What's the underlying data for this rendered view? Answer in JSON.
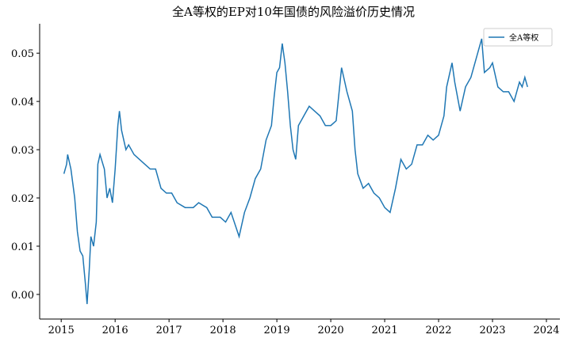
{
  "chart_data": {
    "type": "line",
    "title": "全A等权的EP对10年国债的风险溢价历史情况",
    "x": [
      2015.05,
      2015.1,
      2015.12,
      2015.18,
      2015.25,
      2015.3,
      2015.35,
      2015.4,
      2015.45,
      2015.48,
      2015.52,
      2015.55,
      2015.6,
      2015.65,
      2015.68,
      2015.72,
      2015.8,
      2015.85,
      2015.9,
      2015.95,
      2016.0,
      2016.05,
      2016.08,
      2016.12,
      2016.2,
      2016.25,
      2016.35,
      2016.45,
      2016.55,
      2016.65,
      2016.75,
      2016.85,
      2016.95,
      2017.05,
      2017.15,
      2017.3,
      2017.45,
      2017.55,
      2017.7,
      2017.8,
      2017.95,
      2018.05,
      2018.15,
      2018.3,
      2018.4,
      2018.5,
      2018.6,
      2018.7,
      2018.8,
      2018.9,
      2018.95,
      2019.0,
      2019.05,
      2019.1,
      2019.15,
      2019.2,
      2019.25,
      2019.3,
      2019.35,
      2019.4,
      2019.5,
      2019.6,
      2019.7,
      2019.8,
      2019.9,
      2020.0,
      2020.1,
      2020.2,
      2020.3,
      2020.4,
      2020.45,
      2020.5,
      2020.6,
      2020.7,
      2020.8,
      2020.9,
      2021.0,
      2021.1,
      2021.2,
      2021.3,
      2021.4,
      2021.5,
      2021.6,
      2021.7,
      2021.8,
      2021.9,
      2022.0,
      2022.1,
      2022.15,
      2022.25,
      2022.3,
      2022.4,
      2022.5,
      2022.6,
      2022.7,
      2022.8,
      2022.85,
      2022.95,
      2023.0,
      2023.1,
      2023.2,
      2023.3,
      2023.4,
      2023.5,
      2023.55,
      2023.6,
      2023.65
    ],
    "series": [
      {
        "name": "全A等权",
        "color": "#1f77b4",
        "values": [
          0.025,
          0.027,
          0.029,
          0.026,
          0.02,
          0.013,
          0.009,
          0.008,
          0.002,
          -0.002,
          0.005,
          0.012,
          0.01,
          0.015,
          0.027,
          0.029,
          0.026,
          0.02,
          0.022,
          0.019,
          0.026,
          0.035,
          0.038,
          0.034,
          0.03,
          0.031,
          0.029,
          0.028,
          0.027,
          0.026,
          0.026,
          0.022,
          0.021,
          0.021,
          0.019,
          0.018,
          0.018,
          0.019,
          0.018,
          0.016,
          0.016,
          0.015,
          0.017,
          0.012,
          0.017,
          0.02,
          0.024,
          0.026,
          0.032,
          0.035,
          0.041,
          0.046,
          0.047,
          0.052,
          0.048,
          0.042,
          0.035,
          0.03,
          0.028,
          0.035,
          0.037,
          0.039,
          0.038,
          0.037,
          0.035,
          0.035,
          0.036,
          0.047,
          0.042,
          0.038,
          0.03,
          0.025,
          0.022,
          0.023,
          0.021,
          0.02,
          0.018,
          0.017,
          0.022,
          0.028,
          0.026,
          0.027,
          0.031,
          0.031,
          0.033,
          0.032,
          0.033,
          0.037,
          0.043,
          0.048,
          0.044,
          0.038,
          0.043,
          0.045,
          0.049,
          0.053,
          0.046,
          0.047,
          0.048,
          0.043,
          0.042,
          0.042,
          0.04,
          0.044,
          0.043,
          0.045,
          0.043
        ]
      }
    ],
    "xlim": [
      2014.6,
      2024.25
    ],
    "xticks": [
      2015,
      2016,
      2017,
      2018,
      2019,
      2020,
      2021,
      2022,
      2023,
      2024
    ],
    "ylim": [
      -0.0051,
      0.0561
    ],
    "yticks": [
      {
        "value": 0,
        "label": "0.00"
      },
      0.01,
      0.02,
      0.03,
      0.04,
      0.05
    ],
    "legend": "upper right"
  }
}
